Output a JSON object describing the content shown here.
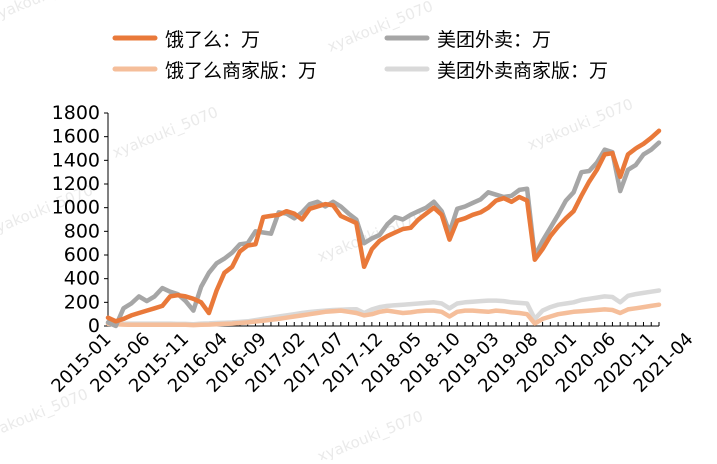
{
  "watermark": "xyakouki_5070",
  "chart_data": {
    "type": "line",
    "title": "",
    "xlabel": "",
    "ylabel": "",
    "ylim": [
      0,
      1800
    ],
    "yticks": [
      0,
      200,
      400,
      600,
      800,
      1000,
      1200,
      1400,
      1600,
      1800
    ],
    "xtick_labels": [
      "2015-01",
      "2015-06",
      "2015-11",
      "2016-04",
      "2016-09",
      "2017-02",
      "2017-07",
      "2017-12",
      "2018-05",
      "2018-10",
      "2019-03",
      "2019-08",
      "2020-01",
      "2020-06",
      "2020-11",
      "2021-04"
    ],
    "x_start": "2015-01",
    "x_end": "2021-07",
    "grid": false,
    "legend_position": "top",
    "legend_columns": 2,
    "series": [
      {
        "name": "饿了么：万",
        "color": "#E9793A",
        "values": [
          70,
          40,
          60,
          90,
          110,
          130,
          150,
          170,
          250,
          260,
          250,
          230,
          200,
          110,
          300,
          450,
          500,
          630,
          680,
          690,
          920,
          930,
          940,
          970,
          950,
          900,
          990,
          1010,
          1030,
          1020,
          930,
          900,
          870,
          500,
          650,
          720,
          760,
          790,
          820,
          830,
          900,
          950,
          1000,
          940,
          730,
          890,
          910,
          940,
          960,
          1000,
          1060,
          1080,
          1050,
          1090,
          1060,
          560,
          650,
          760,
          840,
          910,
          970,
          1100,
          1220,
          1320,
          1450,
          1460,
          1260,
          1450,
          1500,
          1540,
          1590,
          1650
        ]
      },
      {
        "name": "美团外卖：万",
        "color": "#A6A6A6",
        "values": [
          30,
          0,
          150,
          190,
          250,
          210,
          250,
          320,
          290,
          270,
          210,
          130,
          330,
          450,
          530,
          570,
          620,
          690,
          700,
          800,
          790,
          780,
          960,
          950,
          910,
          960,
          1030,
          1050,
          1010,
          1050,
          1010,
          950,
          900,
          700,
          740,
          770,
          860,
          920,
          900,
          940,
          970,
          1000,
          1050,
          970,
          790,
          990,
          1010,
          1040,
          1070,
          1130,
          1110,
          1090,
          1100,
          1150,
          1160,
          590,
          720,
          830,
          940,
          1060,
          1130,
          1300,
          1310,
          1380,
          1490,
          1470,
          1140,
          1320,
          1360,
          1450,
          1490,
          1550
        ]
      },
      {
        "name": "饿了么商家版：万",
        "color": "#F5BE9A",
        "values": [
          18,
          15,
          12,
          10,
          10,
          10,
          10,
          10,
          10,
          10,
          10,
          8,
          10,
          12,
          15,
          18,
          20,
          25,
          30,
          38,
          45,
          52,
          60,
          70,
          80,
          90,
          100,
          110,
          120,
          125,
          130,
          120,
          110,
          90,
          100,
          120,
          130,
          120,
          110,
          115,
          125,
          130,
          130,
          120,
          80,
          120,
          130,
          130,
          125,
          120,
          130,
          125,
          115,
          110,
          100,
          20,
          60,
          80,
          100,
          110,
          120,
          125,
          130,
          135,
          140,
          135,
          110,
          140,
          150,
          160,
          170,
          180
        ]
      },
      {
        "name": "美团外卖商家版：万",
        "color": "#D9D9D9",
        "values": [
          25,
          22,
          20,
          20,
          20,
          20,
          20,
          20,
          20,
          18,
          18,
          15,
          20,
          22,
          25,
          28,
          30,
          35,
          40,
          50,
          60,
          70,
          80,
          90,
          100,
          110,
          118,
          125,
          130,
          135,
          138,
          140,
          142,
          110,
          140,
          160,
          170,
          175,
          180,
          185,
          190,
          195,
          200,
          190,
          150,
          190,
          200,
          205,
          210,
          215,
          215,
          210,
          200,
          195,
          190,
          60,
          130,
          160,
          180,
          190,
          200,
          220,
          230,
          240,
          250,
          245,
          200,
          255,
          270,
          280,
          290,
          300
        ]
      }
    ]
  }
}
